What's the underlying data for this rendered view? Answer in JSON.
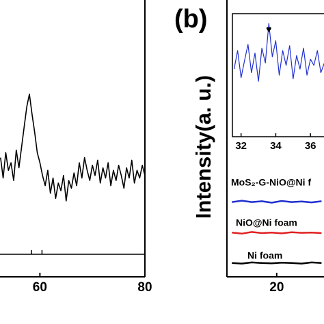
{
  "chart_data": [
    {
      "type": "line",
      "xlim": [
        52.4,
        80
      ],
      "xticks": [
        60,
        80
      ],
      "ylim": [
        0,
        100
      ],
      "reference_peaks": [
        58.4,
        60.4
      ],
      "series": [
        {
          "color": "#000000",
          "x": [
            52.5,
            53,
            53.5,
            54,
            54.5,
            55,
            55.5,
            56,
            56.5,
            57,
            57.5,
            58,
            58.5,
            59,
            59.5,
            60,
            60.5,
            61,
            61.5,
            62,
            62.5,
            63,
            63.5,
            64,
            64.5,
            65,
            65.5,
            66,
            66.5,
            67,
            67.5,
            68,
            68.5,
            69,
            69.5,
            70,
            70.5,
            71,
            71.5,
            72,
            72.5,
            73,
            73.5,
            74,
            74.5,
            75,
            75.5,
            76,
            76.5,
            77,
            77.5,
            78,
            78.5,
            79,
            79.5,
            80
          ],
          "values": [
            38,
            30,
            40,
            33,
            36,
            29,
            41,
            34,
            42,
            50,
            58,
            63,
            55,
            48,
            40,
            36,
            31,
            27,
            33,
            24,
            30,
            22,
            28,
            25,
            31,
            21,
            29,
            26,
            32,
            27,
            36,
            30,
            38,
            33,
            29,
            35,
            31,
            37,
            28,
            34,
            30,
            36,
            27,
            33,
            29,
            35,
            31,
            26,
            34,
            30,
            37,
            28,
            33,
            30,
            35,
            31
          ]
        }
      ]
    },
    {
      "type": "line",
      "label": "(b)",
      "ylabel": "Intensity(a. u.)",
      "xlim": [
        10,
        29.5
      ],
      "xticks": [
        20
      ],
      "ylim": [
        0,
        100
      ],
      "series": [
        {
          "name": "MoS₂-G-NiO@Ni f",
          "color": "#1f2fd0",
          "x": [
            11,
            13,
            15,
            17,
            19,
            21,
            23,
            25,
            27,
            29
          ],
          "values": [
            27,
            27.5,
            27,
            27.3,
            26.8,
            27.4,
            27,
            27.2,
            26.9,
            27.3
          ]
        },
        {
          "name": "NiO@Ni foam",
          "color": "#e02020",
          "x": [
            11,
            13,
            15,
            17,
            19,
            21,
            23,
            25,
            27,
            29
          ],
          "values": [
            16,
            15.6,
            16.2,
            15.8,
            16,
            15.7,
            16.1,
            15.9,
            16,
            15.8
          ]
        },
        {
          "name": "Ni foam",
          "color": "#000000",
          "x": [
            11,
            13,
            15,
            17,
            19,
            21,
            23,
            25,
            27,
            29
          ],
          "values": [
            5,
            4.8,
            5.2,
            5,
            4.9,
            5.1,
            5,
            4.8,
            5.2,
            5
          ]
        }
      ],
      "inset": {
        "xlim": [
          31.5,
          36.9
        ],
        "xticks": [
          32,
          34,
          36
        ],
        "ylim": [
          0,
          100
        ],
        "series": [
          {
            "color": "#1f2fd0",
            "x": [
              31.6,
              31.8,
              32,
              32.2,
              32.4,
              32.6,
              32.8,
              33,
              33.2,
              33.4,
              33.6,
              33.8,
              34,
              34.2,
              34.4,
              34.6,
              34.8,
              35,
              35.2,
              35.4,
              35.6,
              35.8,
              36,
              36.2,
              36.4,
              36.6,
              36.8
            ],
            "values": [
              55,
              70,
              48,
              62,
              75,
              52,
              68,
              45,
              72,
              60,
              92,
              65,
              78,
              50,
              70,
              58,
              74,
              47,
              66,
              55,
              72,
              50,
              63,
              58,
              70,
              52,
              60
            ]
          }
        ],
        "annotation": {
          "text": "♥",
          "x": 33.6,
          "y": 98
        }
      }
    }
  ]
}
